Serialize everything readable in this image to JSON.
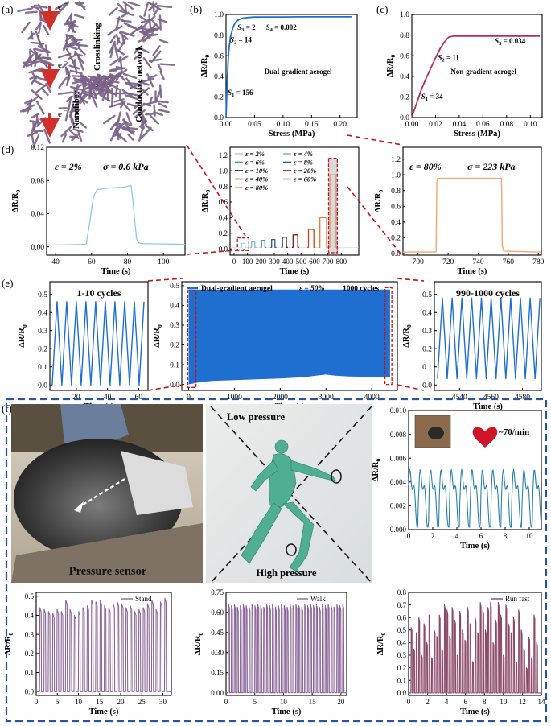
{
  "panel_labels": {
    "a": "(a)",
    "b": "(b)",
    "c": "(c)",
    "d": "(d)",
    "e": "(e)",
    "f": "(f)"
  },
  "schematic": {
    "electron": "e",
    "crosslinking": "Crosslinking",
    "conductive_network": "Conductive network",
    "nanofiber": "Nanofiber"
  },
  "units": {
    "r": "ΔR/R",
    "r_sub": "0",
    "stress": "Stress (MPa)",
    "time": "Time (s)"
  },
  "annotations": {
    "d_left_strain": "ε = 2%",
    "d_left_stress": "σ = 0.6 kPa",
    "d_right_strain": "ε = 80%",
    "d_right_stress": "σ = 223 kPa",
    "e_left_title": "1-10 cycles",
    "e_right_title": "990-1000 cycles",
    "e_strain": "ε = 50%",
    "e_cycles": "1000 cycles",
    "heart_rate": "~70/min",
    "pressure_sensor": "Pressure sensor",
    "low_pressure": "Low pressure",
    "high_pressure": "High pressure"
  },
  "colors": {
    "frame": "#2a54a0",
    "schematic": "#7a6187",
    "dashed": "#c4151c",
    "cycling": "#1f6fd0",
    "heart": "#d0142a",
    "gait": "#8a6698"
  },
  "chart_data": [
    {
      "id": "b",
      "type": "line",
      "title": "",
      "xlabel": "Stress (MPa)",
      "ylabel": "ΔR/R0",
      "xlim": [
        0,
        0.23
      ],
      "ylim": [
        0,
        1.0
      ],
      "xticks": [
        0,
        0.05,
        0.1,
        0.15,
        0.2
      ],
      "xtick_labels": [
        "0.00",
        "0.05",
        "0.10",
        "0.15",
        "0.20"
      ],
      "yticks": [
        0,
        0.2,
        0.4,
        0.6,
        0.8,
        1.0
      ],
      "ytick_labels": [
        "0.0",
        "0.2",
        "0.4",
        "0.6",
        "0.8",
        "1.0"
      ],
      "color": "#1f6fd0",
      "legend": "Dual-gradient aerogel",
      "x": [
        0,
        0.0004,
        0.001,
        0.002,
        0.004,
        0.006,
        0.008,
        0.012,
        0.016,
        0.022,
        0.03,
        0.04,
        0.05,
        0.07,
        0.1,
        0.13,
        0.16,
        0.2,
        0.22
      ],
      "y": [
        0,
        0.06,
        0.17,
        0.33,
        0.58,
        0.71,
        0.79,
        0.87,
        0.92,
        0.95,
        0.965,
        0.972,
        0.975,
        0.976,
        0.976,
        0.977,
        0.977,
        0.977,
        0.977
      ],
      "labels": [
        {
          "s": "S",
          "sub": "1",
          "v": " = 156",
          "x": 0.003,
          "y": 0.22
        },
        {
          "s": "S",
          "sub": "2",
          "v": " = 14",
          "x": 0.007,
          "y": 0.73
        },
        {
          "s": "S",
          "sub": "3",
          "v": " = 2",
          "x": 0.02,
          "y": 0.85
        },
        {
          "s": "S",
          "sub": "4",
          "v": " = 0.002",
          "x": 0.07,
          "y": 0.85
        }
      ]
    },
    {
      "id": "c",
      "type": "line",
      "title": "",
      "xlabel": "Stress (MPa)",
      "ylabel": "ΔR/R0",
      "xlim": [
        0,
        0.11
      ],
      "ylim": [
        0,
        1.0
      ],
      "xticks": [
        0,
        0.02,
        0.04,
        0.06,
        0.08,
        0.1
      ],
      "xtick_labels": [
        "0.00",
        "0.02",
        "0.04",
        "0.06",
        "0.08",
        "0.10"
      ],
      "yticks": [
        0,
        0.2,
        0.4,
        0.6,
        0.8,
        1.0
      ],
      "ytick_labels": [
        "0.0",
        "0.2",
        "0.4",
        "0.6",
        "0.8",
        "1.0"
      ],
      "color": "#b12e63",
      "legend": "Non-gradient aerogel",
      "x": [
        0,
        0.002,
        0.005,
        0.008,
        0.012,
        0.016,
        0.02,
        0.024,
        0.028,
        0.031,
        0.035,
        0.05,
        0.07,
        0.09,
        0.108
      ],
      "y": [
        0,
        0.07,
        0.17,
        0.27,
        0.38,
        0.48,
        0.58,
        0.67,
        0.74,
        0.78,
        0.79,
        0.79,
        0.79,
        0.79,
        0.79
      ],
      "labels": [
        {
          "s": "S",
          "sub": "1",
          "v": " = 34",
          "x": 0.008,
          "y": 0.18
        },
        {
          "s": "S",
          "sub": "2",
          "v": " = 11",
          "x": 0.022,
          "y": 0.56
        },
        {
          "s": "S",
          "sub": "3",
          "v": " = 0.034",
          "x": 0.07,
          "y": 0.72
        }
      ]
    },
    {
      "id": "d-left",
      "type": "line",
      "xlabel": "Time (s)",
      "ylabel": "ΔR/R0",
      "xlim": [
        35,
        112
      ],
      "ylim": [
        -0.01,
        0.12
      ],
      "xticks": [
        40,
        60,
        80,
        100
      ],
      "xtick_labels": [
        "40",
        "60",
        "80",
        "100"
      ],
      "yticks": [
        0,
        0.04,
        0.08,
        0.12
      ],
      "ytick_labels": [
        "0.00",
        "0.04",
        "0.08",
        "0.12"
      ],
      "color": "#8fc8e6",
      "x": [
        35,
        57,
        59,
        61,
        63,
        70,
        78,
        82,
        83,
        85,
        86,
        88,
        112
      ],
      "y": [
        0.002,
        0.003,
        0.03,
        0.06,
        0.069,
        0.071,
        0.072,
        0.074,
        0.055,
        0.01,
        0.005,
        0.004,
        0.003
      ]
    },
    {
      "id": "d-center",
      "type": "line",
      "xlabel": "Time (s)",
      "ylabel": "ΔR/R0",
      "xlim": [
        -30,
        930
      ],
      "ylim": [
        -0.08,
        1.3
      ],
      "xticks": [
        0,
        100,
        200,
        300,
        400,
        500,
        600,
        700,
        800
      ],
      "xtick_labels": [
        "0",
        "100",
        "200",
        "300",
        "400",
        "500",
        "600",
        "700",
        "800"
      ],
      "yticks": [
        0,
        0.2,
        0.4,
        0.6,
        0.8,
        1.0,
        1.2
      ],
      "ytick_labels": [
        "0.0",
        "0.2",
        "0.4",
        "0.6",
        "0.8",
        "1.0",
        "1.2"
      ],
      "series": [
        {
          "name": "ε = 2%",
          "color": "#a7d3ee",
          "x": [
            57,
            82
          ],
          "y": [
            0.07,
            0.07
          ]
        },
        {
          "name": "ε = 4%",
          "color": "#7fb7dd",
          "x": [
            130,
            155
          ],
          "y": [
            0.09,
            0.09
          ]
        },
        {
          "name": "ε = 6%",
          "color": "#3f8fc6",
          "x": [
            205,
            230
          ],
          "y": [
            0.11,
            0.11
          ]
        },
        {
          "name": "ε = 8%",
          "color": "#1f5f91",
          "x": [
            280,
            305
          ],
          "y": [
            0.12,
            0.12
          ]
        },
        {
          "name": "ε = 10%",
          "color": "#151515",
          "x": [
            360,
            390
          ],
          "y": [
            0.15,
            0.15
          ]
        },
        {
          "name": "ε = 20%",
          "color": "#7a1c14",
          "x": [
            440,
            475
          ],
          "y": [
            0.18,
            0.18
          ]
        },
        {
          "name": "ε = 40%",
          "color": "#c0461a",
          "x": [
            555,
            595
          ],
          "y": [
            0.25,
            0.25
          ]
        },
        {
          "name": "ε = 60%",
          "color": "#e37b34",
          "x": [
            640,
            690
          ],
          "y": [
            0.4,
            0.4
          ]
        },
        {
          "name": "ε = 80%",
          "color": "#f4a770",
          "x": [
            715,
            760
          ],
          "y": [
            0.95,
            0.95
          ]
        }
      ]
    },
    {
      "id": "d-right",
      "type": "line",
      "xlabel": "Time (s)",
      "ylabel": "ΔR/R0",
      "xlim": [
        690,
        782
      ],
      "ylim": [
        -0.02,
        1.35
      ],
      "xticks": [
        700,
        720,
        740,
        760,
        780
      ],
      "xtick_labels": [
        "700",
        "720",
        "740",
        "760",
        "780"
      ],
      "yticks": [
        0,
        0.2,
        0.4,
        0.6,
        0.8,
        1.0,
        1.2
      ],
      "ytick_labels": [
        "0.0",
        "0.2",
        "0.4",
        "0.6",
        "0.8",
        "1.0",
        "1.2"
      ],
      "color": "#f4a770",
      "x": [
        690,
        712,
        712.5,
        713,
        735,
        750,
        755.5,
        756,
        757,
        782
      ],
      "y": [
        0.02,
        0.02,
        0.9,
        0.955,
        0.955,
        0.955,
        0.955,
        0.1,
        0.03,
        0.02
      ]
    },
    {
      "id": "e-left",
      "type": "line",
      "xlabel": "Time (s)",
      "ylabel": "ΔR/R0",
      "xlim": [
        3,
        66
      ],
      "ylim": [
        -0.03,
        0.57
      ],
      "xticks": [
        20,
        40,
        60
      ],
      "xtick_labels": [
        "20",
        "40",
        "60"
      ],
      "yticks": [
        0,
        0.1,
        0.2,
        0.3,
        0.4,
        0.5
      ],
      "ytick_labels": [
        "0.0",
        "0.1",
        "0.2",
        "0.3",
        "0.4",
        "0.5"
      ],
      "color": "#1f6fd0",
      "period": 6.2,
      "start": 4.5,
      "cycles": 10,
      "peak": 0.46,
      "base": 0.0
    },
    {
      "id": "e-center",
      "type": "line",
      "xlabel": "Time (s)",
      "ylabel": "ΔR/R0",
      "xlim": [
        -150,
        4560
      ],
      "ylim": [
        -0.03,
        0.52
      ],
      "xticks": [
        0,
        1000,
        2000,
        3000,
        4000
      ],
      "xtick_labels": [
        "0",
        "1000",
        "2000",
        "3000",
        "4000"
      ],
      "yticks": [
        0,
        0.1,
        0.2,
        0.3,
        0.4,
        0.5
      ],
      "ytick_labels": [
        "0.0",
        "0.1",
        "0.2",
        "0.3",
        "0.4",
        "0.5"
      ],
      "color": "#1f6fd0",
      "series": [
        {
          "name": "Dual-gradient aerogel",
          "upper": 0.48,
          "lower_x": [
            0,
            200,
            500,
            1000,
            1500,
            2000,
            2500,
            2800,
            3000,
            3200,
            3500,
            4000,
            4400
          ],
          "lower_y": [
            0.0,
            0.01,
            0.018,
            0.022,
            0.026,
            0.03,
            0.036,
            0.045,
            0.05,
            0.044,
            0.04,
            0.038,
            0.036
          ]
        }
      ]
    },
    {
      "id": "e-right",
      "type": "line",
      "xlabel": "Time (s)",
      "ylabel": "ΔR/R0",
      "xlim": [
        4524,
        4592
      ],
      "ylim": [
        -0.03,
        0.57
      ],
      "xticks": [
        4540,
        4560,
        4580
      ],
      "xtick_labels": [
        "4540",
        "4560",
        "4580"
      ],
      "yticks": [
        0,
        0.1,
        0.2,
        0.3,
        0.4,
        0.5
      ],
      "ytick_labels": [
        "0.0",
        "0.1",
        "0.2",
        "0.3",
        "0.4",
        "0.5"
      ],
      "color": "#1f6fd0",
      "period": 6.2,
      "start": 4526,
      "cycles": 11,
      "peak": 0.48,
      "base": 0.035
    },
    {
      "id": "f-heart",
      "type": "line",
      "xlabel": "Time (s)",
      "ylabel": "ΔR/R0",
      "xlim": [
        0,
        11
      ],
      "ylim": [
        0,
        0.01
      ],
      "xticks": [
        0,
        2,
        4,
        6,
        8,
        10
      ],
      "xtick_labels": [
        "0",
        "2",
        "4",
        "6",
        "8",
        "10"
      ],
      "yticks": [
        0,
        0.002,
        0.004,
        0.006,
        0.008,
        0.01
      ],
      "ytick_labels": [
        "0.000",
        "0.002",
        "0.004",
        "0.006",
        "0.008",
        "0.010"
      ],
      "color": "#2a7fb0",
      "beat_period": 0.86,
      "mid": 0.003,
      "amp": 0.0017
    },
    {
      "id": "f-stand",
      "type": "line",
      "xlabel": "Time (s)",
      "ylabel": "ΔR/R0",
      "legend": "Stand",
      "xlim": [
        0,
        32
      ],
      "ylim": [
        -0.02,
        0.52
      ],
      "xticks": [
        0,
        5,
        10,
        15,
        20,
        25,
        30
      ],
      "xtick_labels": [
        "0",
        "5",
        "10",
        "15",
        "20",
        "25",
        "30"
      ],
      "yticks": [
        0,
        0.1,
        0.2,
        0.3,
        0.4,
        0.5
      ],
      "ytick_labels": [
        "0.0",
        "0.1",
        "0.2",
        "0.3",
        "0.4",
        "0.5"
      ],
      "color": "#8a6698",
      "peaks": [
        0.44,
        0.43,
        0.42,
        0.41,
        0.43,
        0.42,
        0.48,
        0.43,
        0.4,
        0.42,
        0.44,
        0.45,
        0.48,
        0.47,
        0.48,
        0.45,
        0.44,
        0.46,
        0.47,
        0.46,
        0.44,
        0.45,
        0.42,
        0.43,
        0.44,
        0.46,
        0.48,
        0.43,
        0.47,
        0.49
      ],
      "t0": 0.8,
      "dt": 1.02
    },
    {
      "id": "f-walk",
      "type": "line",
      "xlabel": "Time (s)",
      "ylabel": "ΔR/R0",
      "legend": "Walk",
      "xlim": [
        0,
        21
      ],
      "ylim": [
        -0.02,
        0.75
      ],
      "xticks": [
        0,
        5,
        10,
        15,
        20
      ],
      "xtick_labels": [
        "0",
        "5",
        "10",
        "15",
        "20"
      ],
      "yticks": [
        0,
        0.15,
        0.3,
        0.45,
        0.6,
        0.75
      ],
      "ytick_labels": [
        "0.00",
        "0.15",
        "0.30",
        "0.45",
        "0.60",
        "0.75"
      ],
      "color": "#8a6698",
      "peaks": [
        0.66,
        0.65,
        0.66,
        0.64,
        0.65,
        0.66,
        0.65,
        0.64,
        0.66,
        0.65,
        0.66,
        0.65,
        0.64,
        0.66,
        0.65,
        0.66,
        0.64,
        0.65,
        0.66,
        0.65,
        0.64,
        0.66,
        0.65,
        0.66,
        0.65,
        0.64,
        0.66,
        0.65,
        0.66,
        0.65,
        0.66,
        0.64,
        0.66,
        0.65,
        0.66,
        0.65,
        0.64,
        0.66,
        0.65,
        0.66
      ],
      "t0": 0.4,
      "dt": 0.51
    },
    {
      "id": "f-run",
      "type": "line",
      "xlabel": "Time (s)",
      "ylabel": "ΔR/R0",
      "legend": "Run fast",
      "xlim": [
        0,
        14
      ],
      "ylim": [
        -0.02,
        0.8
      ],
      "xticks": [
        0,
        2,
        4,
        6,
        8,
        10,
        12,
        14
      ],
      "xtick_labels": [
        "0",
        "2",
        "4",
        "6",
        "8",
        "10",
        "12",
        "14"
      ],
      "yticks": [
        0,
        0.1,
        0.2,
        0.3,
        0.4,
        0.5,
        0.6,
        0.7,
        0.8
      ],
      "ytick_labels": [
        "0.0",
        "0.1",
        "0.2",
        "0.3",
        "0.4",
        "0.5",
        "0.6",
        "0.7",
        "0.8"
      ],
      "color": "#8a4a68",
      "peaks": [
        0.52,
        0.35,
        0.48,
        0.6,
        0.3,
        0.55,
        0.4,
        0.62,
        0.28,
        0.5,
        0.45,
        0.62,
        0.35,
        0.7,
        0.66,
        0.45,
        0.68,
        0.58,
        0.3,
        0.65,
        0.5,
        0.42,
        0.68,
        0.55,
        0.25,
        0.6,
        0.48,
        0.72,
        0.66,
        0.5,
        0.68,
        0.72,
        0.4,
        0.58,
        0.72,
        0.62,
        0.3,
        0.7,
        0.55,
        0.48,
        0.6,
        0.25,
        0.66,
        0.5,
        0.35,
        0.2,
        0.44,
        0.28,
        0.62,
        0.4
      ],
      "t0": 0.25,
      "dt": 0.27
    }
  ]
}
